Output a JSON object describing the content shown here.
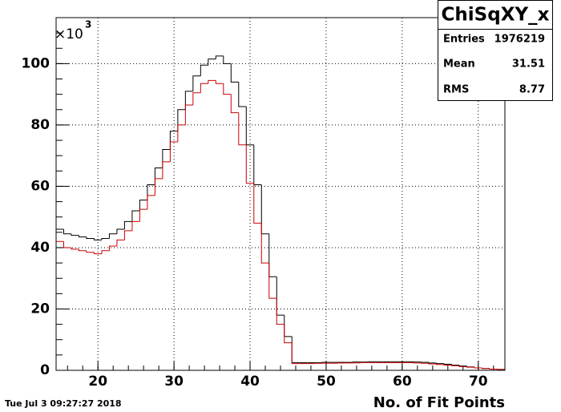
{
  "chart_data": {
    "type": "histogram",
    "stats": {
      "title": "ChiSqXY_x",
      "rows": [
        {
          "label": "Entries",
          "value": 1976219
        },
        {
          "label": "Mean",
          "value": 31.51
        },
        {
          "label": "RMS",
          "value": 8.77
        }
      ]
    },
    "y_multiplier": {
      "base": "×10",
      "exponent": "3"
    },
    "x_label": "No. of Fit Points",
    "date": "Tue Jul  3 09:27:27 2018",
    "bins": [
      14.5,
      15.5,
      16.5,
      17.5,
      18.5,
      19.5,
      20.5,
      21.5,
      22.5,
      23.5,
      24.5,
      25.5,
      26.5,
      27.5,
      28.5,
      29.5,
      30.5,
      31.5,
      32.5,
      33.5,
      34.5,
      35.5,
      36.5,
      37.5,
      38.5,
      39.5,
      40.5,
      41.5,
      42.5,
      43.5,
      44.5,
      45.5,
      46.5,
      47.5,
      48.5,
      49.5,
      50.5,
      51.5,
      52.5,
      53.5,
      54.5,
      55.5,
      56.5,
      57.5,
      58.5,
      59.5,
      60.5,
      61.5,
      62.5,
      63.5,
      64.5,
      65.5,
      66.5,
      67.5,
      68.5,
      69.5,
      70.5,
      71.5,
      72.5,
      73.5
    ],
    "series": [
      {
        "color": "#000000",
        "values": [
          46,
          44.5,
          44,
          43.5,
          43,
          42.5,
          43,
          44.5,
          46,
          48.5,
          52,
          55.5,
          60.5,
          66,
          72,
          78,
          85,
          91,
          96,
          99.5,
          101.5,
          102.5,
          100,
          94,
          86,
          73.5,
          60.5,
          44.5,
          30.5,
          18,
          11,
          2.5,
          2.5,
          2.5,
          2.5,
          2.6,
          2.6,
          2.6,
          2.6,
          2.7,
          2.7,
          2.8,
          2.8,
          2.8,
          2.8,
          2.8,
          2.8,
          2.7,
          2.6,
          2.4,
          2.2,
          2,
          1.7,
          1.4,
          1.1,
          0.8,
          0.6,
          0.4,
          0.3
        ]
      },
      {
        "color": "#cc0000",
        "values": [
          42,
          40,
          39.5,
          39,
          38.5,
          38,
          39,
          40.5,
          42.5,
          45.5,
          48.5,
          52.5,
          57,
          62.5,
          68,
          74.5,
          80,
          86.5,
          90.5,
          93.5,
          94.5,
          93.5,
          90,
          84,
          73.5,
          61,
          48,
          35,
          23.5,
          15,
          9,
          2.2,
          2.2,
          2.2,
          2.3,
          2.3,
          2.3,
          2.4,
          2.4,
          2.4,
          2.5,
          2.5,
          2.5,
          2.5,
          2.5,
          2.5,
          2.5,
          2.4,
          2.3,
          2.1,
          1.9,
          1.7,
          1.5,
          1.2,
          1,
          0.8,
          0.6,
          0.4,
          0.3
        ]
      }
    ],
    "xlim": [
      14.5,
      73.5
    ],
    "ylim": [
      0,
      115
    ],
    "xticks": [
      20,
      30,
      40,
      50,
      60,
      70
    ],
    "yticks": [
      0,
      20,
      40,
      60,
      80,
      100
    ],
    "grid": true
  }
}
